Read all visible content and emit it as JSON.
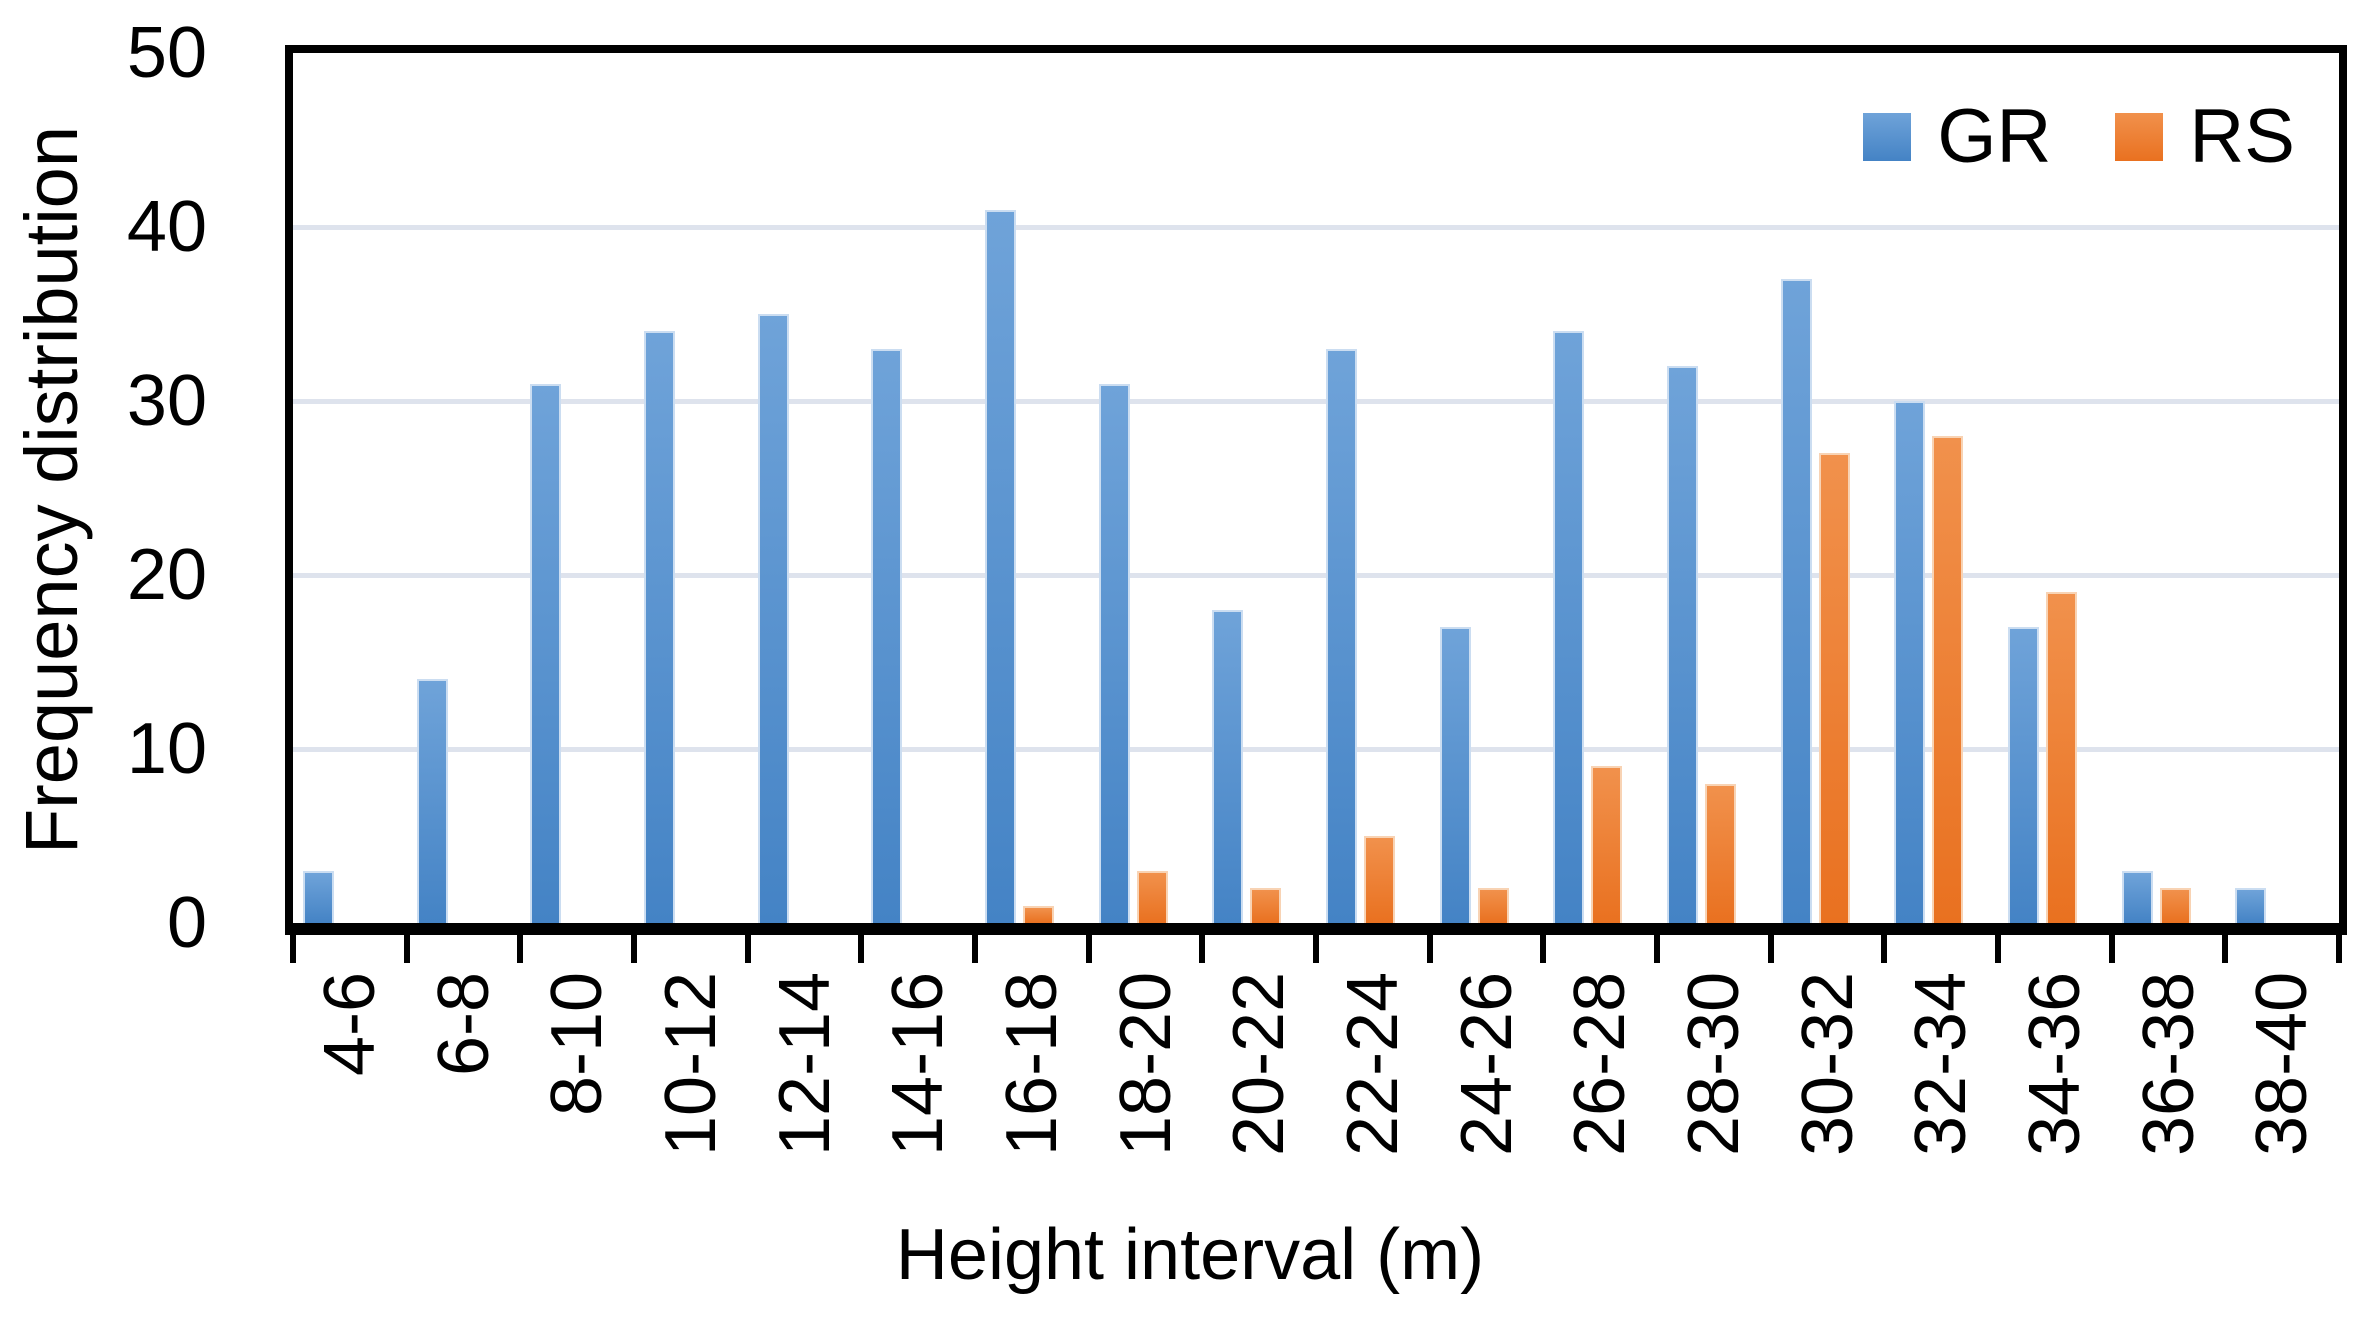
{
  "chart_data": {
    "type": "bar",
    "title": "",
    "xlabel": "Height interval (m)",
    "ylabel": "Frequency distribution",
    "categories": [
      "4-6",
      "6-8",
      "8-10",
      "10-12",
      "12-14",
      "14-16",
      "16-18",
      "18-20",
      "20-22",
      "22-24",
      "24-26",
      "26-28",
      "28-30",
      "30-32",
      "32-34",
      "34-36",
      "36-38",
      "38-40"
    ],
    "series": [
      {
        "name": "GR",
        "values": [
          3,
          14,
          31,
          34,
          35,
          33,
          41,
          31,
          18,
          33,
          17,
          34,
          32,
          37,
          30,
          17,
          3,
          2
        ],
        "color_top": "#6FA3D9",
        "color_bottom": "#4483C5",
        "edge_color": "#CBDDF1"
      },
      {
        "name": "RS",
        "values": [
          0,
          0,
          0,
          0,
          0,
          0,
          1,
          3,
          2,
          5,
          2,
          9,
          8,
          27,
          28,
          19,
          2,
          0
        ],
        "color_top": "#F1914C",
        "color_bottom": "#E97120",
        "edge_color": "#F8D3B4"
      }
    ],
    "ylim": [
      0,
      50
    ],
    "yticks": [
      0,
      10,
      20,
      30,
      40,
      50
    ],
    "grid": "horizontal-major",
    "gridline_color": "#DEE3ED",
    "axis_color": "#000000",
    "background": "#FFFFFF",
    "legend_position": "top-right-inside"
  }
}
